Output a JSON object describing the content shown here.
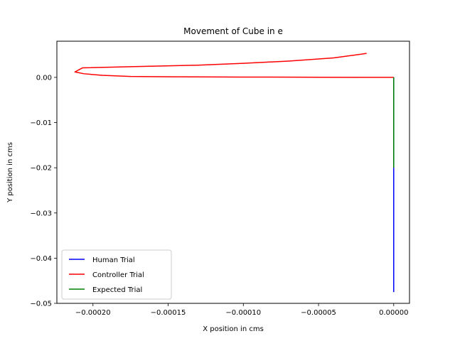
{
  "chart_data": {
    "type": "line",
    "title": "Movement of Cube in e",
    "xlabel": "X position in cms",
    "ylabel": "Y position in cms",
    "xlim": [
      -0.000224,
      1.05e-05
    ],
    "ylim": [
      -0.05,
      0.008
    ],
    "x_ticks": [
      -0.0002,
      -0.00015,
      -0.0001,
      -5e-05,
      0.0
    ],
    "x_tick_labels": [
      "−0.00020",
      "−0.00015",
      "−0.00010",
      "−0.00005",
      "0.00000"
    ],
    "y_ticks": [
      -0.05,
      -0.04,
      -0.03,
      -0.02,
      -0.01,
      0.0
    ],
    "y_tick_labels": [
      "−0.05",
      "−0.04",
      "−0.03",
      "−0.02",
      "−0.01",
      "0.00"
    ],
    "grid": false,
    "legend_position": "lower-left",
    "series": [
      {
        "name": "Human Trial",
        "color": "#0000ff",
        "x": [
          0.0,
          0.0
        ],
        "y": [
          -0.0475,
          0.0
        ]
      },
      {
        "name": "Controller Trial",
        "color": "#ff0000",
        "x": [
          0.0,
          -5e-05,
          -0.0001,
          -0.000145,
          -0.000175,
          -0.000194,
          -0.000206,
          -0.000212,
          -0.000207,
          -0.00017,
          -0.00013,
          -0.0001,
          -7e-05,
          -4e-05,
          -1.8e-05
        ],
        "y": [
          0.0,
          3e-05,
          7e-05,
          0.00012,
          0.0002,
          0.00045,
          0.0008,
          0.0012,
          0.0021,
          0.0024,
          0.0027,
          0.0031,
          0.0036,
          0.0043,
          0.0053
        ]
      },
      {
        "name": "Expected Trial",
        "color": "#008000",
        "x": [
          0.0,
          0.0
        ],
        "y": [
          -0.02,
          0.0
        ]
      }
    ]
  }
}
